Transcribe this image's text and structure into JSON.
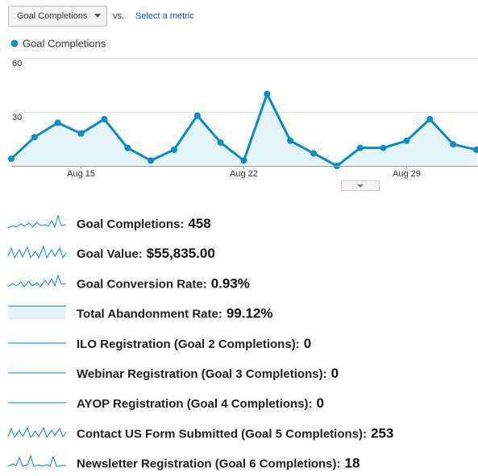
{
  "toolbar": {
    "dropdown": "Goal Completions",
    "vs": "vs.",
    "link": "Select a metric"
  },
  "chart_data": {
    "type": "line",
    "categories": [
      null,
      null,
      null,
      "Aug 15",
      null,
      null,
      null,
      null,
      null,
      null,
      "Aug 22",
      null,
      null,
      null,
      null,
      null,
      null,
      "Aug 29",
      null,
      null,
      null
    ],
    "series": [
      {
        "name": "Goal Completions",
        "color": "#058dc7",
        "values": [
          4,
          16,
          24,
          18,
          26,
          10,
          3,
          9,
          28,
          13,
          3,
          40,
          14,
          7,
          0,
          10,
          10,
          14,
          26,
          12,
          9
        ]
      }
    ],
    "ylim": [
      0,
      60
    ],
    "yticks": [
      30,
      60
    ],
    "grid": true
  },
  "metrics": [
    {
      "label": "Goal Completions:",
      "value": 458
    },
    {
      "label": "Goal Value:",
      "value": "$55,835.00"
    },
    {
      "label": "Goal Conversion Rate:",
      "value": "0.93%"
    },
    {
      "label": "Total Abandonment Rate:",
      "value": "99.12%"
    },
    {
      "label": "ILO Registration (Goal 2 Completions):",
      "value": 0
    },
    {
      "label": "Webinar Registration (Goal 3 Completions):",
      "value": 0
    },
    {
      "label": "AYOP Registration (Goal 4 Completions):",
      "value": 0
    },
    {
      "label": "Contact US Form Submitted (Goal 5 Completions):",
      "value": 253
    },
    {
      "label": "Newsletter Registration (Goal 6 Completions):",
      "value": 18
    }
  ]
}
